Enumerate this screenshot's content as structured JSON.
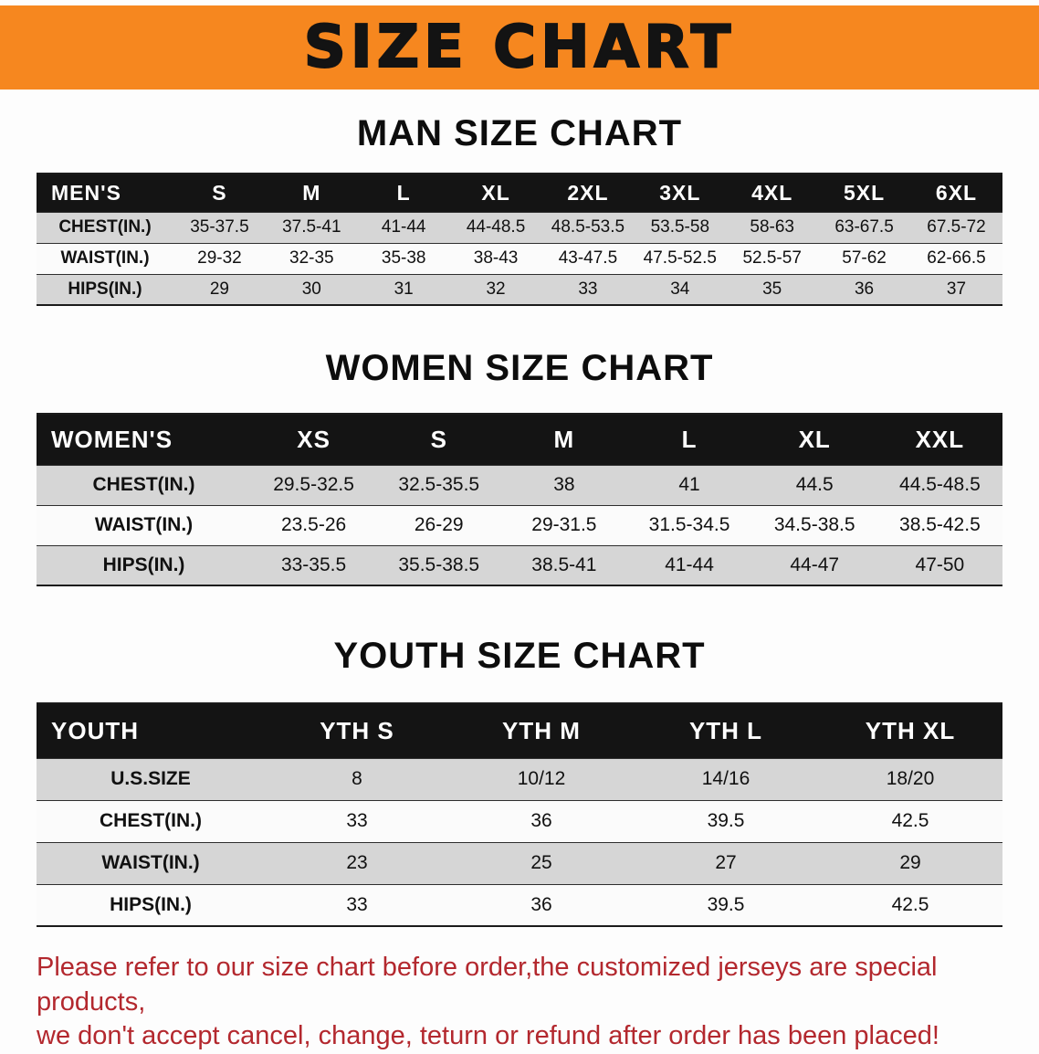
{
  "banner": {
    "title": "SIZE CHART"
  },
  "colors": {
    "banner_bg": "#f6871f",
    "header_row_bg": "#141414",
    "stripe_gray": "#d6d6d6",
    "disclaimer_text": "#b3282e"
  },
  "sections": [
    {
      "id": "men",
      "heading": "MAN SIZE CHART",
      "table": {
        "header": [
          "MEN'S",
          "S",
          "M",
          "L",
          "XL",
          "2XL",
          "3XL",
          "4XL",
          "5XL",
          "6XL"
        ],
        "rows": [
          [
            "CHEST(IN.)",
            "35-37.5",
            "37.5-41",
            "41-44",
            "44-48.5",
            "48.5-53.5",
            "53.5-58",
            "58-63",
            "63-67.5",
            "67.5-72"
          ],
          [
            "WAIST(IN.)",
            "29-32",
            "32-35",
            "35-38",
            "38-43",
            "43-47.5",
            "47.5-52.5",
            "52.5-57",
            "57-62",
            "62-66.5"
          ],
          [
            "HIPS(IN.)",
            "29",
            "30",
            "31",
            "32",
            "33",
            "34",
            "35",
            "36",
            "37"
          ]
        ]
      }
    },
    {
      "id": "women",
      "heading": "WOMEN SIZE CHART",
      "table": {
        "header": [
          "WOMEN'S",
          "XS",
          "S",
          "M",
          "L",
          "XL",
          "XXL"
        ],
        "rows": [
          [
            "CHEST(IN.)",
            "29.5-32.5",
            "32.5-35.5",
            "38",
            "41",
            "44.5",
            "44.5-48.5"
          ],
          [
            "WAIST(IN.)",
            "23.5-26",
            "26-29",
            "29-31.5",
            "31.5-34.5",
            "34.5-38.5",
            "38.5-42.5"
          ],
          [
            "HIPS(IN.)",
            "33-35.5",
            "35.5-38.5",
            "38.5-41",
            "41-44",
            "44-47",
            "47-50"
          ]
        ]
      }
    },
    {
      "id": "youth",
      "heading": "YOUTH SIZE CHART",
      "table": {
        "header": [
          "YOUTH",
          "YTH S",
          "YTH M",
          "YTH L",
          "YTH XL"
        ],
        "rows": [
          [
            "U.S.SIZE",
            "8",
            "10/12",
            "14/16",
            "18/20"
          ],
          [
            "CHEST(IN.)",
            "33",
            "36",
            "39.5",
            "42.5"
          ],
          [
            "WAIST(IN.)",
            "23",
            "25",
            "27",
            "29"
          ],
          [
            "HIPS(IN.)",
            "33",
            "36",
            "39.5",
            "42.5"
          ]
        ]
      }
    }
  ],
  "footer": {
    "lines": [
      "Please refer to our size chart before order,the customized jerseys are special products,",
      "we don't accept cancel, change, teturn or refund after order has been placed!"
    ]
  }
}
